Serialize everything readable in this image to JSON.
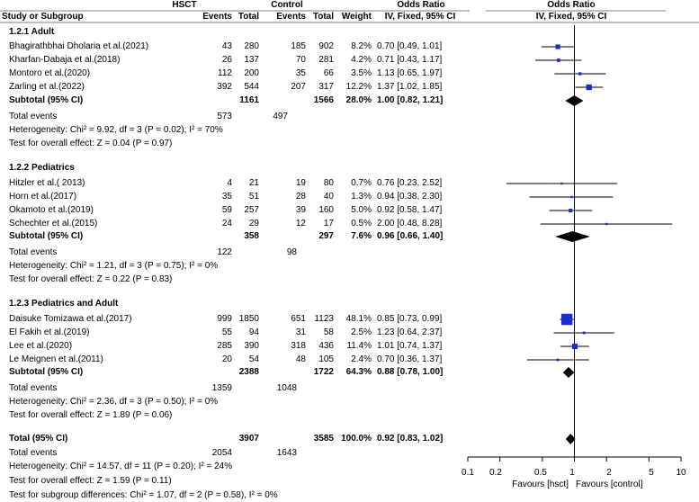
{
  "header": {
    "group1": "HSCT",
    "group2": "Control",
    "study_col": "Study or Subgroup",
    "events1": "Events",
    "total1": "Total",
    "events2": "Events",
    "total2": "Total",
    "weight": "Weight",
    "or_title": "Odds Ratio",
    "or_method": "IV, Fixed, 95% CI",
    "plot_title": "Odds Ratio",
    "plot_method": "IV, Fixed, 95% CI"
  },
  "chart_data": {
    "type": "forest",
    "title": "Odds Ratio",
    "subtitle": "IV, Fixed, 95% CI",
    "xscale": "log",
    "xlim": [
      0.1,
      10
    ],
    "ticks": [
      "0.1",
      "0.2",
      "0.5",
      "1",
      "2",
      "5",
      "10"
    ],
    "tick_values": [
      0.1,
      0.2,
      0.5,
      1,
      2,
      5,
      10
    ],
    "favours_left": "Favours [hsct]",
    "favours_right": "Favours [control]",
    "subgroups": [
      {
        "title": "1.2.1 Adult",
        "studies": [
          {
            "name": "Bhagirathbhai Dholaria et al.(2021)",
            "e1": "43",
            "n1": "280",
            "e2": "185",
            "n2": "902",
            "weight": "8.2%",
            "ci_text": "0.70 [0.49, 1.01]",
            "or": 0.7,
            "lo": 0.49,
            "hi": 1.01,
            "w": 8.2
          },
          {
            "name": "Kharfan-Dabaja et al.(2018)",
            "e1": "26",
            "n1": "137",
            "e2": "70",
            "n2": "281",
            "weight": "4.2%",
            "ci_text": "0.71 [0.43, 1.17]",
            "or": 0.71,
            "lo": 0.43,
            "hi": 1.17,
            "w": 4.2
          },
          {
            "name": "Montoro et al.(2020)",
            "e1": "112",
            "n1": "200",
            "e2": "35",
            "n2": "66",
            "weight": "3.5%",
            "ci_text": "1.13 [0.65, 1.97]",
            "or": 1.13,
            "lo": 0.65,
            "hi": 1.97,
            "w": 3.5
          },
          {
            "name": "Zarling et al.(2022)",
            "e1": "392",
            "n1": "544",
            "e2": "207",
            "n2": "317",
            "weight": "12.2%",
            "ci_text": "1.37 [1.02, 1.85]",
            "or": 1.37,
            "lo": 1.02,
            "hi": 1.85,
            "w": 12.2
          }
        ],
        "subtotal": {
          "label": "Subtotal (95% CI)",
          "n1": "1161",
          "n2": "1566",
          "weight": "28.0%",
          "ci_text": "1.00 [0.82, 1.21]",
          "or": 1.0,
          "lo": 0.82,
          "hi": 1.21
        },
        "total_events_label": "Total events",
        "total_events1": "573",
        "total_events2": "497",
        "heterogeneity": "Heterogeneity: Chi² = 9.92, df = 3 (P = 0.02); I² = 70%",
        "overall": "Test for overall effect: Z = 0.04 (P = 0.97)"
      },
      {
        "title": "1.2.2 Pediatrics",
        "studies": [
          {
            "name": "Hitzler et al.( 2013)",
            "e1": "4",
            "n1": "21",
            "e2": "19",
            "n2": "80",
            "weight": "0.7%",
            "ci_text": "0.76 [0.23, 2.52]",
            "or": 0.76,
            "lo": 0.23,
            "hi": 2.52,
            "w": 0.7
          },
          {
            "name": "Horn et al.(2017)",
            "e1": "35",
            "n1": "51",
            "e2": "28",
            "n2": "40",
            "weight": "1.3%",
            "ci_text": "0.94 [0.38, 2.30]",
            "or": 0.94,
            "lo": 0.38,
            "hi": 2.3,
            "w": 1.3
          },
          {
            "name": "Okamoto et al.(2019)",
            "e1": "59",
            "n1": "257",
            "e2": "39",
            "n2": "160",
            "weight": "5.0%",
            "ci_text": "0.92 [0.58, 1.47]",
            "or": 0.92,
            "lo": 0.58,
            "hi": 1.47,
            "w": 5.0
          },
          {
            "name": "Schechter et al.(2015)",
            "e1": "24",
            "n1": "29",
            "e2": "12",
            "n2": "17",
            "weight": "0.5%",
            "ci_text": "2.00 [0.48, 8.28]",
            "or": 2.0,
            "lo": 0.48,
            "hi": 8.28,
            "w": 0.5
          }
        ],
        "subtotal": {
          "label": "Subtotal (95% CI)",
          "n1": "358",
          "n2": "297",
          "weight": "7.6%",
          "ci_text": "0.96 [0.66, 1.40]",
          "or": 0.96,
          "lo": 0.66,
          "hi": 1.4
        },
        "total_events_label": "Total events",
        "total_events1": "122",
        "total_events2": "98",
        "heterogeneity": "Heterogeneity: Chi² = 1.21, df = 3 (P = 0.75); I² = 0%",
        "overall": "Test for overall effect: Z = 0.22 (P = 0.83)"
      },
      {
        "title": "1.2.3 Pediatrics and Adult",
        "studies": [
          {
            "name": "Daisuke Tomizawa et al.(2017)",
            "e1": "999",
            "n1": "1850",
            "e2": "651",
            "n2": "1123",
            "weight": "48.1%",
            "ci_text": "0.85 [0.73, 0.99]",
            "or": 0.85,
            "lo": 0.73,
            "hi": 0.99,
            "w": 48.1
          },
          {
            "name": "El Fakih et al.(2019)",
            "e1": "55",
            "n1": "94",
            "e2": "31",
            "n2": "58",
            "weight": "2.5%",
            "ci_text": "1.23 [0.64, 2.37]",
            "or": 1.23,
            "lo": 0.64,
            "hi": 2.37,
            "w": 2.5
          },
          {
            "name": "Lee et al.(2020)",
            "e1": "285",
            "n1": "390",
            "e2": "318",
            "n2": "436",
            "weight": "11.4%",
            "ci_text": "1.01 [0.74, 1.37]",
            "or": 1.01,
            "lo": 0.74,
            "hi": 1.37,
            "w": 11.4
          },
          {
            "name": "Le Meignen et al.(2011)",
            "e1": "20",
            "n1": "54",
            "e2": "48",
            "n2": "105",
            "weight": "2.4%",
            "ci_text": "0.70 [0.36, 1.37]",
            "or": 0.7,
            "lo": 0.36,
            "hi": 1.37,
            "w": 2.4
          }
        ],
        "subtotal": {
          "label": "Subtotal (95% CI)",
          "n1": "2388",
          "n2": "1722",
          "weight": "64.3%",
          "ci_text": "0.88 [0.78, 1.00]",
          "or": 0.88,
          "lo": 0.78,
          "hi": 1.0
        },
        "total_events_label": "Total events",
        "total_events1": "1359",
        "total_events2": "1048",
        "heterogeneity": "Heterogeneity: Chi² = 2.36, df = 3 (P = 0.50); I² = 0%",
        "overall": "Test for overall effect: Z = 1.89 (P = 0.06)"
      }
    ],
    "total": {
      "label": "Total (95% CI)",
      "n1": "3907",
      "n2": "3585",
      "weight": "100.0%",
      "ci_text": "0.92 [0.83, 1.02]",
      "or": 0.92,
      "lo": 0.83,
      "hi": 1.02
    },
    "total_events_label": "Total events",
    "total_events1": "2054",
    "total_events2": "1643",
    "heterogeneity": "Heterogeneity: Chi² = 14.57, df = 11 (P = 0.20); I² = 24%",
    "overall": "Test for overall effect: Z = 1.59 (P = 0.11)",
    "subgroup_diff": "Test for subgroup differences: Chi² = 1.07, df = 2 (P = 0.58), I² = 0%"
  },
  "colors": {
    "marker": "#1a2bd6",
    "diamond": "#000000",
    "line": "#000000",
    "header_rule": "#808080"
  }
}
